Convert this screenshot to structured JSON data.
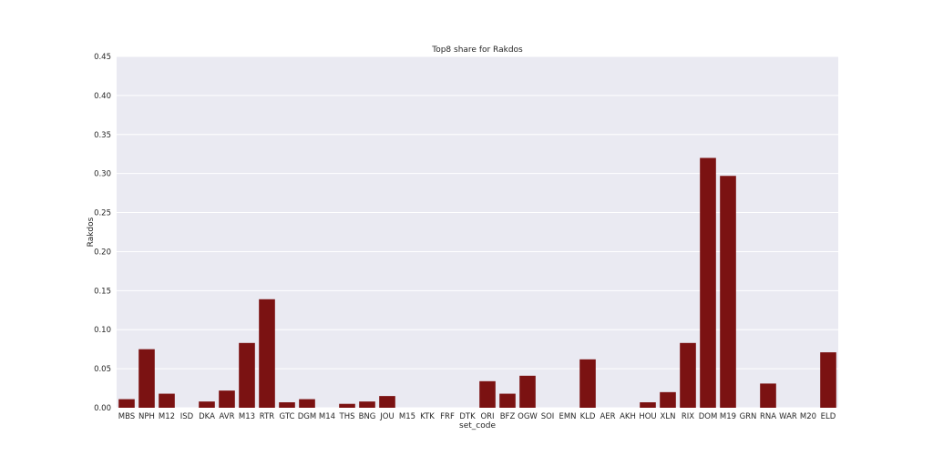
{
  "chart_data": {
    "type": "bar",
    "title": "Top8 share for Rakdos",
    "xlabel": "set_code",
    "ylabel": "Rakdos",
    "ylim": [
      0,
      0.45
    ],
    "yticks": [
      "0.00",
      "0.05",
      "0.10",
      "0.15",
      "0.20",
      "0.25",
      "0.30",
      "0.35",
      "0.40",
      "0.45"
    ],
    "grid": true,
    "bar_color": "#7b1212",
    "plot_background": "#eaeaf2",
    "grid_color": "#ffffff",
    "categories": [
      "MBS",
      "NPH",
      "M12",
      "ISD",
      "DKA",
      "AVR",
      "M13",
      "RTR",
      "GTC",
      "DGM",
      "M14",
      "THS",
      "BNG",
      "JOU",
      "M15",
      "KTK",
      "FRF",
      "DTK",
      "ORI",
      "BFZ",
      "OGW",
      "SOI",
      "EMN",
      "KLD",
      "AER",
      "AKH",
      "HOU",
      "XLN",
      "RIX",
      "DOM",
      "M19",
      "GRN",
      "RNA",
      "WAR",
      "M20",
      "ELD"
    ],
    "values": [
      0.011,
      0.075,
      0.018,
      0.0,
      0.008,
      0.022,
      0.083,
      0.139,
      0.007,
      0.011,
      0.0,
      0.005,
      0.008,
      0.015,
      0.0,
      0.0,
      0.0,
      0.0,
      0.034,
      0.018,
      0.041,
      0.0,
      0.0,
      0.062,
      0.0,
      0.0,
      0.007,
      0.02,
      0.083,
      0.32,
      0.297,
      0.0,
      0.031,
      0.0,
      0.0,
      0.071
    ]
  }
}
